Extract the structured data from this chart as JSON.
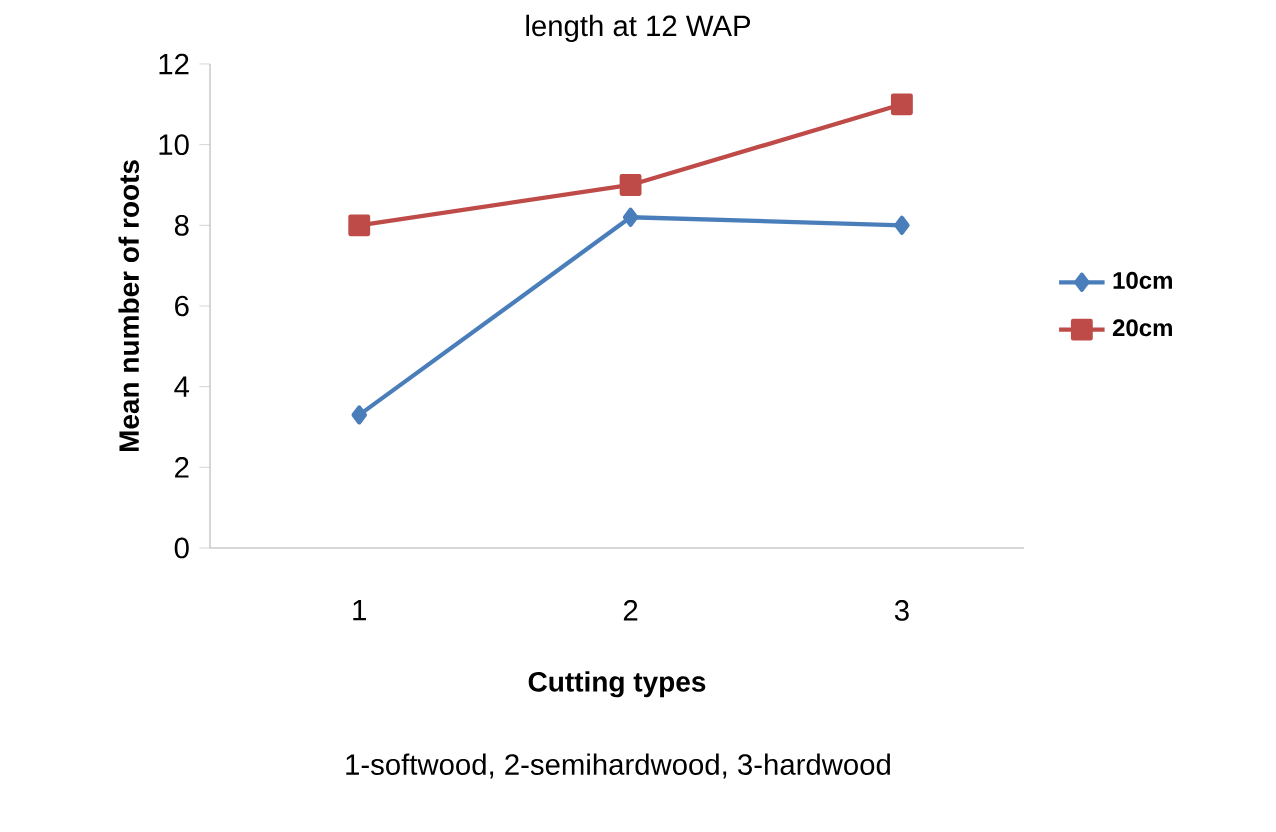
{
  "chart_data": {
    "type": "line",
    "title": "length at 12 WAP",
    "xlabel": "Cutting types",
    "ylabel": "Mean number of roots",
    "annotations": [
      "1-softwood, 2-semihardwood, 3-hardwood"
    ],
    "categories": [
      "1",
      "2",
      "3"
    ],
    "series": [
      {
        "name": "10cm",
        "color": "#4a7ebb",
        "marker": "diamond",
        "values": [
          3.3,
          8.2,
          8.0
        ]
      },
      {
        "name": "20cm",
        "color": "#be4b48",
        "marker": "square",
        "values": [
          8,
          9,
          11
        ]
      }
    ],
    "ylim": [
      0,
      12
    ],
    "yticks": [
      0,
      2,
      4,
      6,
      8,
      10,
      12
    ],
    "grid": false,
    "legend": "right",
    "line_style": "solid"
  }
}
